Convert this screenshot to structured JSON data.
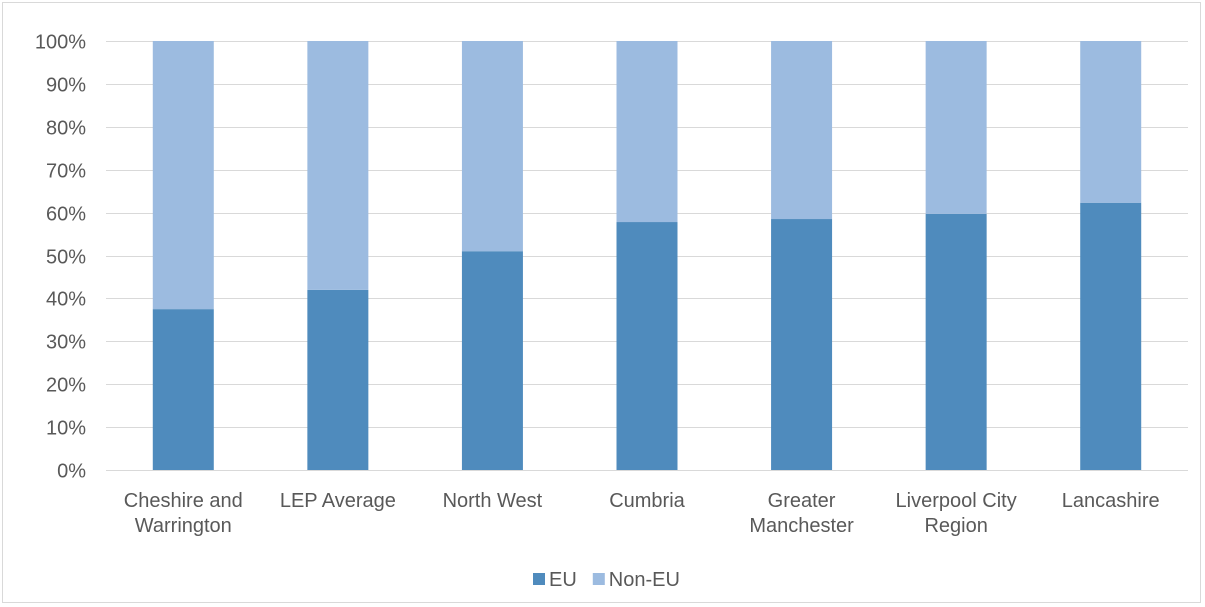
{
  "chart_data": {
    "type": "bar",
    "stacked": true,
    "percent_stacked": true,
    "categories": [
      [
        "Cheshire and",
        "Warrington"
      ],
      [
        "LEP Average"
      ],
      [
        "North West"
      ],
      [
        "Cumbria"
      ],
      [
        "Greater",
        "Manchester"
      ],
      [
        "Liverpool City",
        "Region"
      ],
      [
        "Lancashire"
      ]
    ],
    "series": [
      {
        "name": "EU",
        "color": "#4f8bbd",
        "values": [
          37.5,
          42,
          51,
          57.8,
          58.5,
          59.7,
          62.3
        ]
      },
      {
        "name": "Non-EU",
        "color": "#9cbbe0",
        "values": [
          62.5,
          58,
          49,
          42.2,
          41.5,
          40.3,
          37.7
        ]
      }
    ],
    "y_ticks": [
      "0%",
      "10%",
      "20%",
      "30%",
      "40%",
      "50%",
      "60%",
      "70%",
      "80%",
      "90%",
      "100%"
    ],
    "ylim": [
      0,
      100
    ],
    "grid": true,
    "gridline_color": "#d9d9d9",
    "legend_position": "bottom",
    "title": "",
    "xlabel": "",
    "ylabel": ""
  }
}
